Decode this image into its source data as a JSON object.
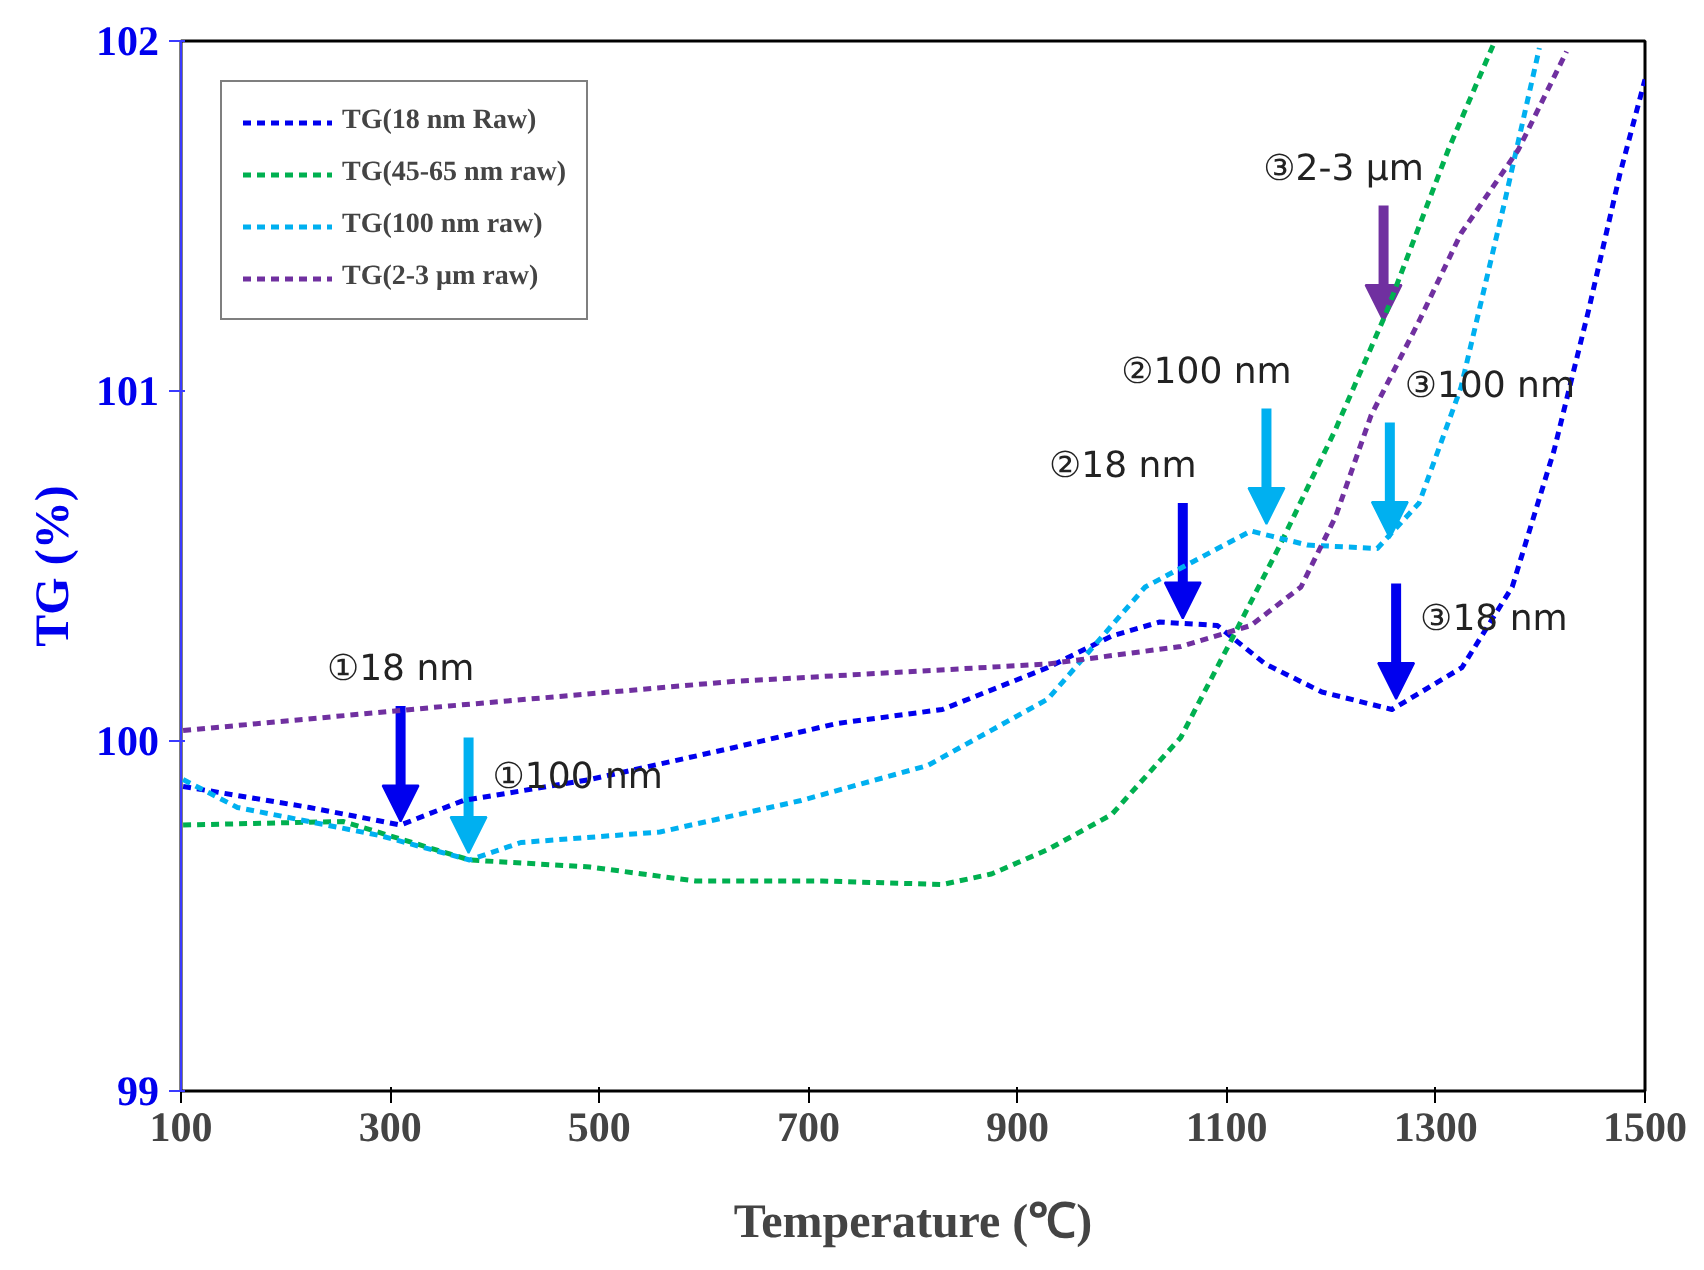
{
  "chart_data": {
    "type": "line",
    "xlabel": "Temperature (℃)",
    "ylabel": "TG (%)",
    "xlim": [
      100,
      1500
    ],
    "xticks": [
      100,
      300,
      500,
      700,
      900,
      1100,
      1300,
      1500
    ],
    "ylim": [
      99,
      102
    ],
    "yticks": [
      99,
      100,
      101,
      102
    ],
    "grid": false,
    "legend": "top left",
    "line_style": "dashed",
    "marker": "none",
    "series": [
      {
        "name": "TG(18 nm Raw)",
        "color": "#0000ee",
        "x": [
          102,
          223,
          310,
          370,
          491,
          627,
          727,
          828,
          929,
          990,
          1036,
          1091,
          1137,
          1191,
          1258,
          1325,
          1373,
          1413,
          1446,
          1476,
          1500
        ],
        "values": [
          99.87,
          99.81,
          99.76,
          99.83,
          99.89,
          99.98,
          100.05,
          100.09,
          100.21,
          100.3,
          100.34,
          100.33,
          100.22,
          100.14,
          100.09,
          100.21,
          100.44,
          100.83,
          101.23,
          101.62,
          101.89
        ]
      },
      {
        "name": "TG(45-65 nm raw)",
        "color": "#00b050",
        "x": [
          102,
          255,
          376,
          491,
          592,
          713,
          828,
          875,
          929,
          990,
          1056,
          1103,
          1151,
          1204,
          1252,
          1312,
          1355
        ],
        "values": [
          99.76,
          99.77,
          99.66,
          99.64,
          99.6,
          99.6,
          99.59,
          99.62,
          99.69,
          99.79,
          100.01,
          100.28,
          100.56,
          100.89,
          101.22,
          101.69,
          101.99
        ]
      },
      {
        "name": "TG(100 nm raw)",
        "color": "#00b0f0",
        "x": [
          102,
          154,
          290,
          376,
          425,
          558,
          693,
          814,
          929,
          1022,
          1123,
          1177,
          1244,
          1284,
          1324,
          1365,
          1399
        ],
        "values": [
          99.89,
          99.81,
          99.73,
          99.66,
          99.71,
          99.74,
          99.83,
          99.93,
          100.12,
          100.44,
          100.6,
          100.56,
          100.55,
          100.68,
          101.01,
          101.53,
          101.98
        ]
      },
      {
        "name": "TG(2-3 μm raw)",
        "color": "#7030a0",
        "x": [
          102,
          356,
          627,
          929,
          1056,
          1123,
          1171,
          1204,
          1238,
          1284,
          1324,
          1379,
          1425
        ],
        "values": [
          100.03,
          100.1,
          100.17,
          100.22,
          100.27,
          100.33,
          100.44,
          100.64,
          100.93,
          101.2,
          101.45,
          101.69,
          101.97
        ]
      }
    ],
    "annotations": [
      {
        "text": "①18 nm",
        "x": 310,
        "y": 99.77
      },
      {
        "text": "①100 nm",
        "x": 375,
        "y": 99.68
      },
      {
        "text": "②18 nm",
        "x": 1058,
        "y": 100.35
      },
      {
        "text": "②100 nm",
        "x": 1138,
        "y": 100.62
      },
      {
        "text": "③100 nm",
        "x": 1256,
        "y": 100.58
      },
      {
        "text": "③18 nm",
        "x": 1262,
        "y": 100.12
      },
      {
        "text": "③2-3 μm",
        "x": 1250,
        "y": 101.2
      }
    ]
  }
}
